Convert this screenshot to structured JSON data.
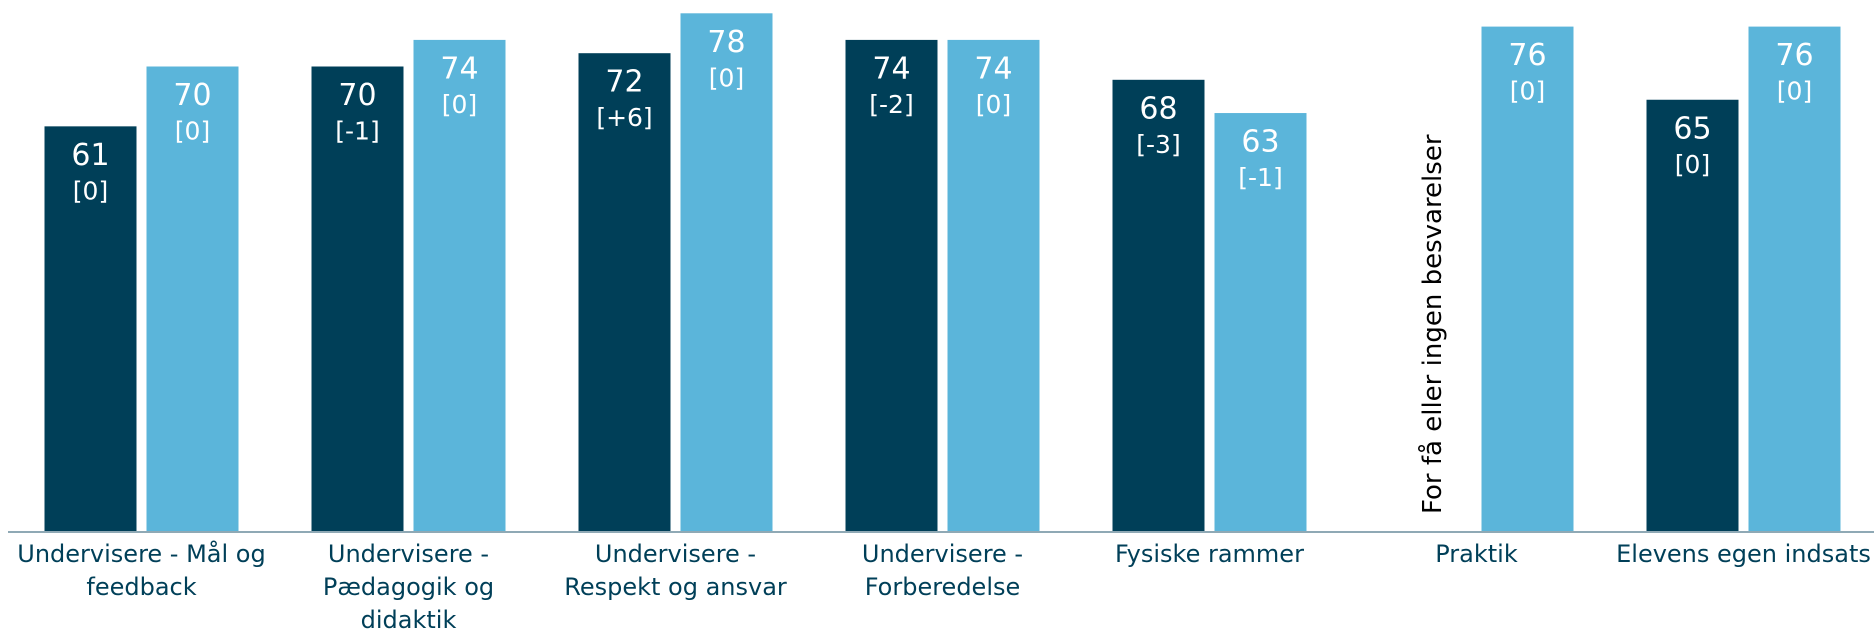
{
  "chart_data": {
    "type": "bar",
    "categories": [
      "Undervisere - Mål og feedback",
      "Undervisere - Pædagogik og didaktik",
      "Undervisere - Respekt og ansvar",
      "Undervisere - Forberedelse",
      "Fysiske rammer",
      "Praktik",
      "Elevens egen indsats"
    ],
    "series": [
      {
        "color": "#003f58",
        "values": [
          61,
          70,
          72,
          74,
          68,
          null,
          65
        ],
        "changes": [
          "[0]",
          "[-1]",
          "[+6]",
          "[-2]",
          "[-3]",
          null,
          "[0]"
        ]
      },
      {
        "color": "#5bb5da",
        "values": [
          70,
          74,
          78,
          74,
          63,
          76,
          76
        ],
        "changes": [
          "[0]",
          "[0]",
          "[0]",
          "[0]",
          "[-1]",
          "[0]",
          "[0]"
        ]
      }
    ],
    "annotations": [
      {
        "category": 5,
        "series": 0,
        "text": "For få eller ingen besvarelser"
      }
    ],
    "ylim": [
      0,
      80
    ]
  }
}
